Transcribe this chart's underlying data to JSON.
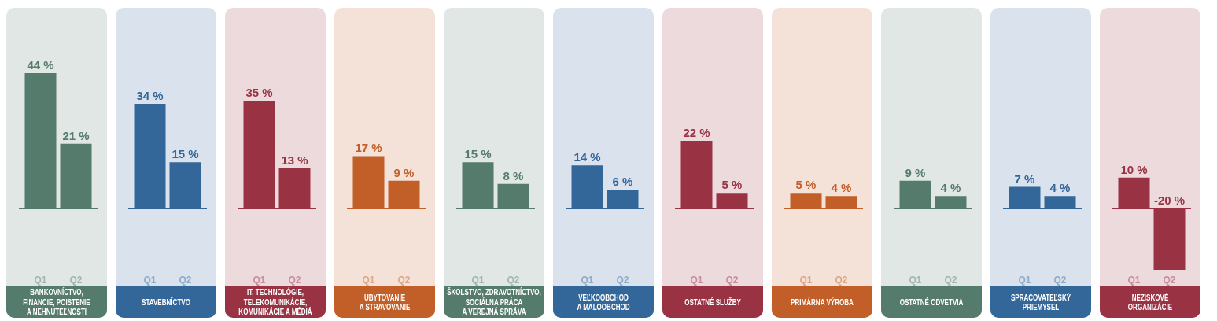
{
  "chart_data": [
    {
      "type": "bar",
      "title": "BANKOVNÍCTVO,\nFINANCIE, POISTENIE\nA NEHNUTEĽNOSTI",
      "categories": [
        "Q1",
        "Q2"
      ],
      "values": [
        44,
        21
      ],
      "value_labels": [
        "44 %",
        "21 %"
      ],
      "color": "#557b6c",
      "tick_labels": "x",
      "ref_lines": [
        {
          "axis": "y",
          "value": 0
        }
      ]
    },
    {
      "type": "bar",
      "title": "STAVEBNÍCTVO",
      "categories": [
        "Q1",
        "Q2"
      ],
      "values": [
        34,
        15
      ],
      "value_labels": [
        "34 %",
        "15 %"
      ],
      "color": "#336699",
      "tick_labels": "x",
      "ref_lines": [
        {
          "axis": "y",
          "value": 0
        }
      ]
    },
    {
      "type": "bar",
      "title": "IT, TECHNOLÓGIE,\nTELEKOMUNIKÁCIE,\nKOMUNIKÁCIE A MÉDIÁ",
      "categories": [
        "Q1",
        "Q2"
      ],
      "values": [
        35,
        13
      ],
      "value_labels": [
        "35 %",
        "13 %"
      ],
      "color": "#993344",
      "tick_labels": "x",
      "ref_lines": [
        {
          "axis": "y",
          "value": 0
        }
      ]
    },
    {
      "type": "bar",
      "title": "UBYTOVANIE\nA STRAVOVANIE",
      "categories": [
        "Q1",
        "Q2"
      ],
      "values": [
        17,
        9
      ],
      "value_labels": [
        "17 %",
        "9 %"
      ],
      "color": "#c25e27",
      "tick_labels": "x",
      "ref_lines": [
        {
          "axis": "y",
          "value": 0
        }
      ]
    },
    {
      "type": "bar",
      "title": "ŠKOLSTVO, ZDRAVOTNÍCTVO,\nSOCIÁLNA PRÁCA\nA VEREJNÁ SPRÁVA",
      "categories": [
        "Q1",
        "Q2"
      ],
      "values": [
        15,
        8
      ],
      "value_labels": [
        "15 %",
        "8 %"
      ],
      "color": "#557b6c",
      "tick_labels": "x",
      "ref_lines": [
        {
          "axis": "y",
          "value": 0
        }
      ]
    },
    {
      "type": "bar",
      "title": "VEĽKOOBCHOD\nA MALOOBCHOD",
      "categories": [
        "Q1",
        "Q2"
      ],
      "values": [
        14,
        6
      ],
      "value_labels": [
        "14 %",
        "6 %"
      ],
      "color": "#336699",
      "tick_labels": "x",
      "ref_lines": [
        {
          "axis": "y",
          "value": 0
        }
      ]
    },
    {
      "type": "bar",
      "title": "OSTATNÉ SLUŽBY",
      "categories": [
        "Q1",
        "Q2"
      ],
      "values": [
        22,
        5
      ],
      "value_labels": [
        "22 %",
        "5 %"
      ],
      "color": "#993344",
      "tick_labels": "x",
      "ref_lines": [
        {
          "axis": "y",
          "value": 0
        }
      ]
    },
    {
      "type": "bar",
      "title": "PRIMÁRNA VÝROBA",
      "categories": [
        "Q1",
        "Q2"
      ],
      "values": [
        5,
        4
      ],
      "value_labels": [
        "5 %",
        "4 %"
      ],
      "color": "#c25e27",
      "tick_labels": "x",
      "ref_lines": [
        {
          "axis": "y",
          "value": 0
        }
      ]
    },
    {
      "type": "bar",
      "title": "OSTATNÉ ODVETVIA",
      "categories": [
        "Q1",
        "Q2"
      ],
      "values": [
        9,
        4
      ],
      "value_labels": [
        "9 %",
        "4 %"
      ],
      "color": "#557b6c",
      "tick_labels": "x",
      "ref_lines": [
        {
          "axis": "y",
          "value": 0
        }
      ]
    },
    {
      "type": "bar",
      "title": "SPRACOVATEĽSKÝ\nPRIEMYSEL",
      "categories": [
        "Q1",
        "Q2"
      ],
      "values": [
        7,
        4
      ],
      "value_labels": [
        "7 %",
        "4 %"
      ],
      "color": "#336699",
      "tick_labels": "x",
      "ref_lines": [
        {
          "axis": "y",
          "value": 0
        }
      ]
    },
    {
      "type": "bar",
      "title": "NEZISKOVÉ\nORGANIZÁCIE",
      "categories": [
        "Q1",
        "Q2"
      ],
      "values": [
        10,
        -20
      ],
      "value_labels": [
        "10 %",
        "-20 %"
      ],
      "color": "#993344",
      "tick_labels": "x",
      "ref_lines": [
        {
          "axis": "y",
          "value": 0
        }
      ]
    }
  ]
}
